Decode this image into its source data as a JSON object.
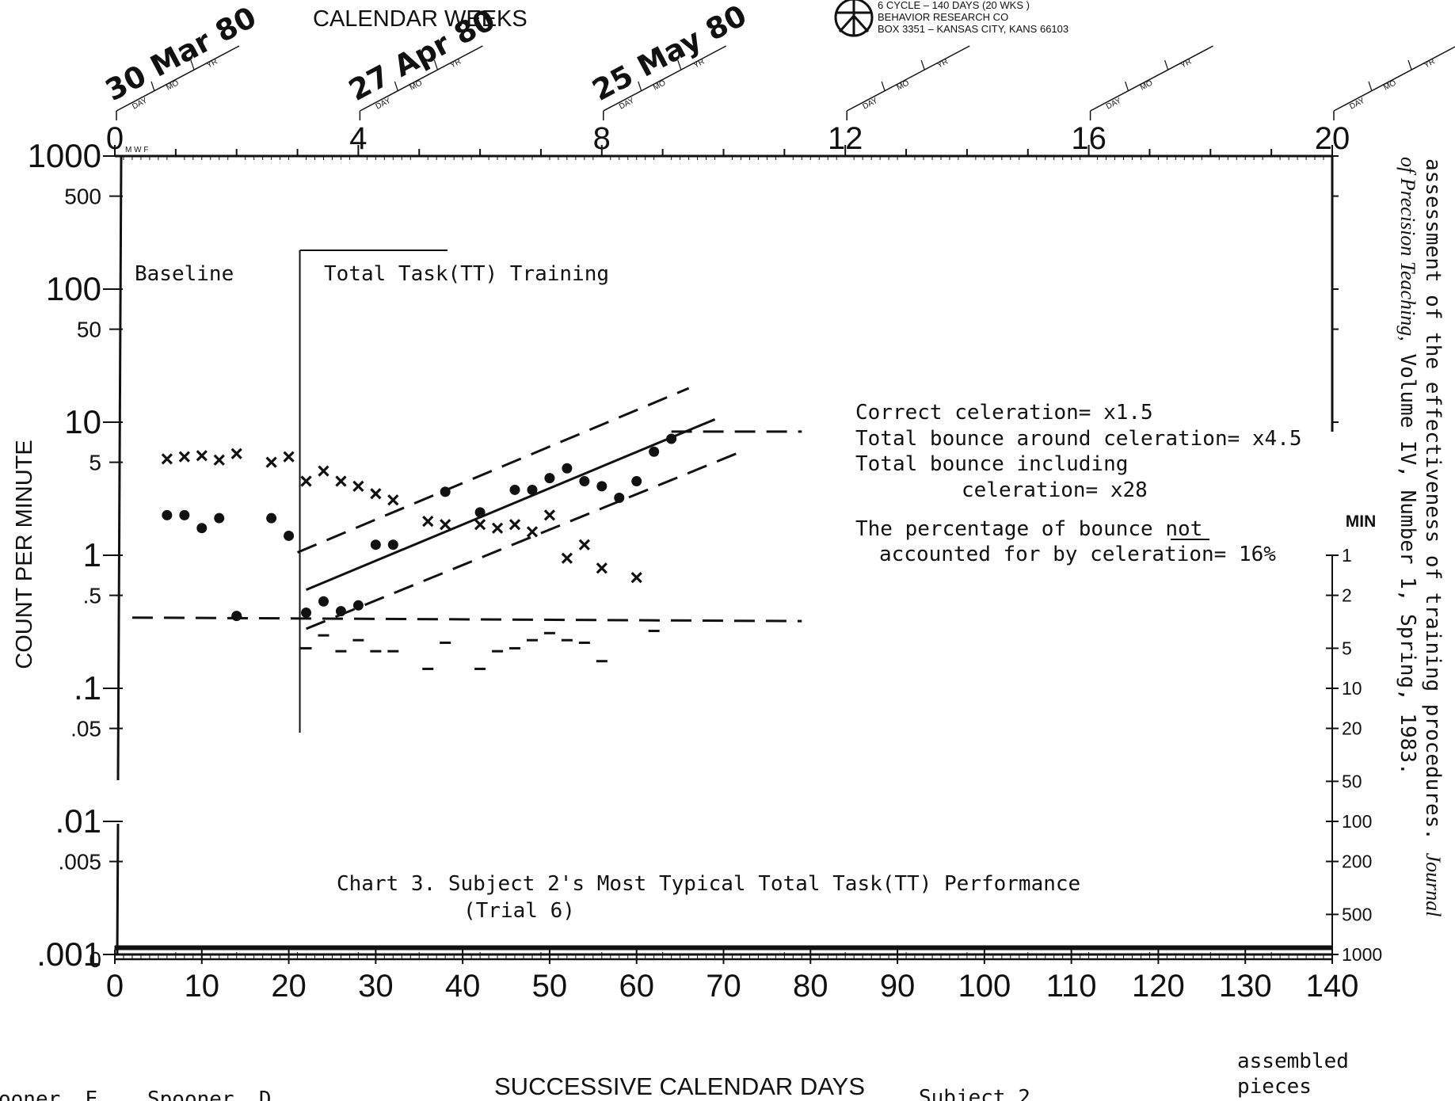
{
  "header": {
    "calendar_weeks_label": "CALENDAR WEEKS",
    "publisher_lines": [
      "6 CYCLE – 140 DAYS (20 WKS )",
      "BEHAVIOR RESEARCH CO",
      "BOX 3351 – KANSAS CITY, KANS 66103"
    ],
    "date_slot_labels": [
      "DAY",
      "MO",
      "YR"
    ],
    "handwritten_dates": [
      "30 Mar 80",
      "27 Apr 80",
      "25 May 80"
    ],
    "mwf_label": "M W F"
  },
  "citation": {
    "line1": "assessment of the effectiveness of training procedures.",
    "journal": "Journal",
    "line2_italic": "of Precision Teaching,",
    "line2_rest": "Volume IV, Number 1, Spring, 1983."
  },
  "right_axis": {
    "title": "MIN",
    "ticks": [
      "1",
      "2",
      "5",
      "10",
      "20",
      "50",
      "100",
      "200",
      "500",
      "1000"
    ]
  },
  "footer": {
    "names": [
      "ooner, E.",
      "Spooner, D."
    ],
    "subject": "Subject 2",
    "assembled": [
      "assembled",
      "pieces"
    ]
  },
  "chart_data": {
    "type": "scatter",
    "title": "Chart 3.  Subject 2's Most Typical Total Task(TT) Performance",
    "subtitle": "(Trial 6)",
    "xlabel": "SUCCESSIVE CALENDAR DAYS",
    "ylabel": "COUNT PER MINUTE",
    "y_scale": "log",
    "xlim": [
      0,
      140
    ],
    "ylim": [
      0.001,
      1000
    ],
    "x_ticks": [
      "0",
      "10",
      "20",
      "30",
      "40",
      "50",
      "60",
      "70",
      "80",
      "90",
      "100",
      "110",
      "120",
      "130",
      "140"
    ],
    "week_ticks": [
      "0",
      "4",
      "8",
      "12",
      "16",
      "20"
    ],
    "y_tick_labels": [
      {
        "value": 1000,
        "label": "1000"
      },
      {
        "value": 500,
        "label": "500"
      },
      {
        "value": 100,
        "label": "100"
      },
      {
        "value": 50,
        "label": "50"
      },
      {
        "value": 10,
        "label": "10"
      },
      {
        "value": 5,
        "label": "5"
      },
      {
        "value": 1,
        "label": "1"
      },
      {
        "value": 0.5,
        "label": ".5"
      },
      {
        "value": 0.1,
        "label": ".1"
      },
      {
        "value": 0.05,
        "label": ".05"
      },
      {
        "value": 0.01,
        "label": ".01"
      },
      {
        "value": 0.005,
        "label": ".005"
      },
      {
        "value": 0.001,
        "label": ".001"
      },
      {
        "value": 0.0001,
        "label": "0"
      }
    ],
    "phases": [
      {
        "label": "Baseline",
        "x_start": 0
      },
      {
        "label": "Total Task(TT) Training",
        "x_start": 21
      }
    ],
    "series": [
      {
        "name": "",
        "marker": "dot",
        "points": [
          [
            6,
            2.0
          ],
          [
            8,
            2.0
          ],
          [
            10,
            1.6
          ],
          [
            12,
            1.9
          ],
          [
            14,
            0.35
          ],
          [
            18,
            1.9
          ],
          [
            20,
            1.4
          ],
          [
            22,
            0.37
          ],
          [
            24,
            0.45
          ],
          [
            26,
            0.38
          ],
          [
            28,
            0.42
          ],
          [
            30,
            1.2
          ],
          [
            32,
            1.2
          ],
          [
            38,
            3.0
          ],
          [
            42,
            2.1
          ],
          [
            46,
            3.1
          ],
          [
            48,
            3.1
          ],
          [
            50,
            3.8
          ],
          [
            52,
            4.5
          ],
          [
            54,
            3.6
          ],
          [
            56,
            3.3
          ],
          [
            58,
            2.7
          ],
          [
            60,
            3.6
          ],
          [
            62,
            6.0
          ],
          [
            64,
            7.5
          ]
        ]
      },
      {
        "name": "",
        "marker": "x",
        "points": [
          [
            6,
            5.3
          ],
          [
            8,
            5.5
          ],
          [
            10,
            5.6
          ],
          [
            12,
            5.2
          ],
          [
            14,
            5.8
          ],
          [
            18,
            5.0
          ],
          [
            20,
            5.5
          ],
          [
            22,
            3.6
          ],
          [
            24,
            4.3
          ],
          [
            26,
            3.6
          ],
          [
            28,
            3.3
          ],
          [
            30,
            2.9
          ],
          [
            32,
            2.6
          ],
          [
            36,
            1.8
          ],
          [
            38,
            1.7
          ],
          [
            42,
            1.7
          ],
          [
            44,
            1.6
          ],
          [
            46,
            1.7
          ],
          [
            48,
            1.5
          ],
          [
            50,
            2.0
          ],
          [
            52,
            0.95
          ],
          [
            54,
            1.2
          ],
          [
            56,
            0.8
          ],
          [
            60,
            0.68
          ]
        ]
      }
    ],
    "dash_records": [
      {
        "x": 14,
        "y": 0.34
      },
      {
        "x": 22,
        "y": 0.2
      },
      {
        "x": 24,
        "y": 0.25
      },
      {
        "x": 26,
        "y": 0.19
      },
      {
        "x": 28,
        "y": 0.23
      },
      {
        "x": 30,
        "y": 0.19
      },
      {
        "x": 32,
        "y": 0.19
      },
      {
        "x": 36,
        "y": 0.14
      },
      {
        "x": 38,
        "y": 0.22
      },
      {
        "x": 42,
        "y": 0.14
      },
      {
        "x": 44,
        "y": 0.19
      },
      {
        "x": 46,
        "y": 0.2
      },
      {
        "x": 48,
        "y": 0.23
      },
      {
        "x": 50,
        "y": 0.26
      },
      {
        "x": 52,
        "y": 0.23
      },
      {
        "x": 54,
        "y": 0.22
      },
      {
        "x": 56,
        "y": 0.16
      },
      {
        "x": 62,
        "y": 0.27
      }
    ],
    "trend_lines": [
      {
        "style": "solid",
        "x": [
          22,
          69
        ],
        "y": [
          0.55,
          10.5
        ]
      },
      {
        "style": "dashed",
        "x": [
          21,
          66
        ],
        "y": [
          1.05,
          18.0
        ]
      },
      {
        "style": "dashed",
        "x": [
          22,
          72
        ],
        "y": [
          0.28,
          6.0
        ]
      },
      {
        "style": "dashed",
        "x": [
          64,
          79
        ],
        "y": [
          8.5,
          8.5
        ]
      },
      {
        "style": "dashed",
        "x": [
          2,
          79
        ],
        "y": [
          0.34,
          0.32
        ]
      }
    ],
    "annotations": [
      "Correct celeration= x1.5",
      "Total bounce around celeration= x4.5",
      "Total bounce including",
      "celeration= x28",
      "The percentage of bounce not",
      "accounted for by celeration= 16%"
    ],
    "grid": false
  }
}
